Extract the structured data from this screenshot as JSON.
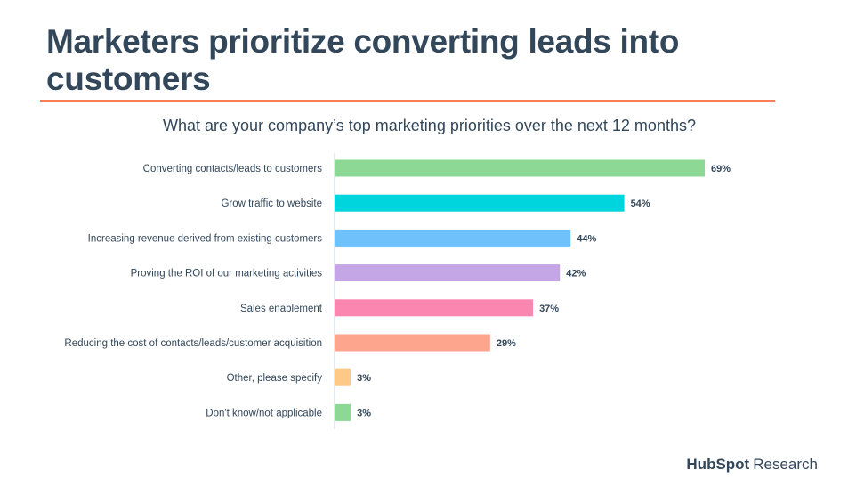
{
  "title": "Marketers prioritize converting leads into customers",
  "logo": {
    "brand": "HubSpot",
    "suffix": "Research"
  },
  "chart_data": {
    "type": "bar",
    "orientation": "horizontal",
    "title": "What are your company’s top marketing priorities over the next 12 months?",
    "categories": [
      "Converting contacts/leads to customers",
      "Grow traffic to website",
      "Increasing revenue derived from existing customers",
      "Proving the ROI of our marketing activities",
      "Sales enablement",
      "Reducing the cost of contacts/leads/customer acquisition",
      "Other, please specify",
      "Don't know/not applicable"
    ],
    "values": [
      69,
      54,
      44,
      42,
      37,
      29,
      3,
      3
    ],
    "value_labels": [
      "69%",
      "54%",
      "44%",
      "42%",
      "37%",
      "29%",
      "3%",
      "3%"
    ],
    "colors": [
      "#8ed896",
      "#00d4dd",
      "#6fc1fb",
      "#c4a5e6",
      "#fb87b1",
      "#fea58e",
      "#fec987",
      "#8ed896"
    ],
    "xlim": [
      0,
      100
    ],
    "unit": "%",
    "grid": false,
    "legend": "none"
  }
}
